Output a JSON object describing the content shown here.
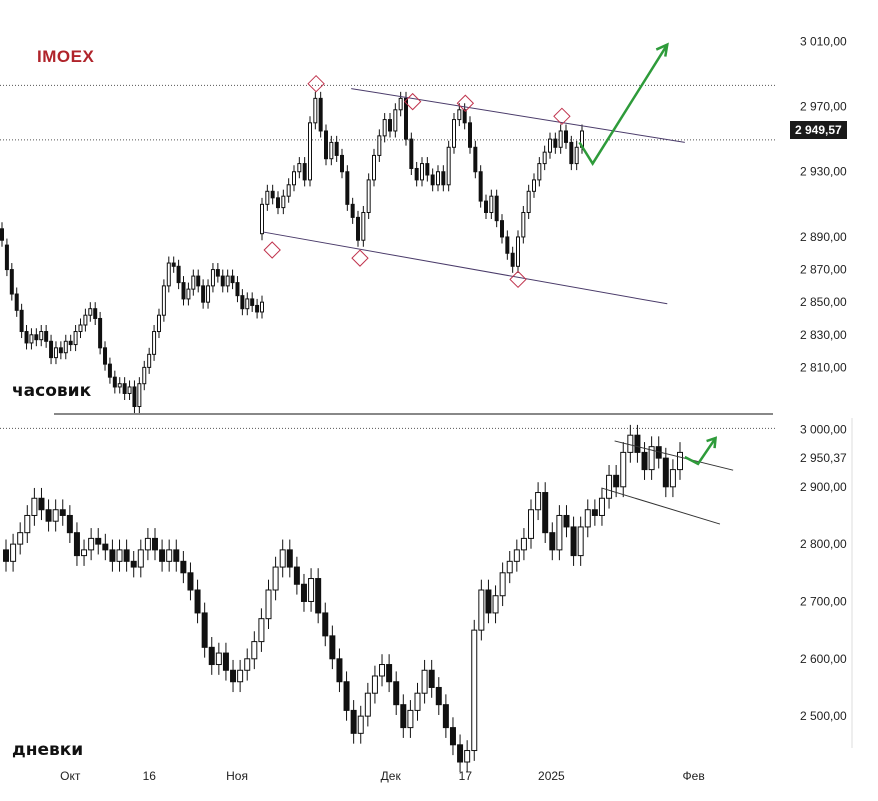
{
  "ticker": "IMOEX",
  "chart_data": [
    {
      "type": "candlestick",
      "panel": "hourly",
      "title": "часовик",
      "ylim": [
        2790,
        3020
      ],
      "y_ticks": [
        2810,
        2830,
        2850,
        2870,
        2890,
        2930,
        2970,
        3010
      ],
      "y_tick_labels": [
        "2 810,00",
        "2 830,00",
        "2 850,00",
        "2 870,00",
        "2 890,00",
        "2 930,00",
        "2 970,00",
        "3 010,00"
      ],
      "last_price": 2949.57,
      "last_price_label": "2 949,57",
      "reference_lines": [
        2949.57,
        2983
      ],
      "channel": {
        "upper": [
          [
            0.4,
            2981
          ],
          [
            0.78,
            2948
          ]
        ],
        "lower": [
          [
            0.3,
            2893
          ],
          [
            0.76,
            2849
          ]
        ]
      },
      "markers": [
        {
          "x": 0.36,
          "y": 2984
        },
        {
          "x": 0.47,
          "y": 2973
        },
        {
          "x": 0.53,
          "y": 2972
        },
        {
          "x": 0.64,
          "y": 2964
        },
        {
          "x": 0.31,
          "y": 2882
        },
        {
          "x": 0.41,
          "y": 2877
        },
        {
          "x": 0.59,
          "y": 2864
        }
      ],
      "forecast": [
        [
          0.66,
          2948
        ],
        [
          0.675,
          2935
        ],
        [
          0.76,
          3008
        ]
      ],
      "candles": [
        [
          2895,
          2888
        ],
        [
          2885,
          2870
        ],
        [
          2870,
          2855
        ],
        [
          2855,
          2845
        ],
        [
          2845,
          2832
        ],
        [
          2832,
          2825
        ],
        [
          2825,
          2830
        ],
        [
          2830,
          2827
        ],
        [
          2827,
          2832
        ],
        [
          2832,
          2826
        ],
        [
          2826,
          2816
        ],
        [
          2816,
          2822
        ],
        [
          2822,
          2819
        ],
        [
          2819,
          2826
        ],
        [
          2826,
          2824
        ],
        [
          2824,
          2832
        ],
        [
          2832,
          2836
        ],
        [
          2836,
          2842
        ],
        [
          2842,
          2846
        ],
        [
          2846,
          2840
        ],
        [
          2840,
          2822
        ],
        [
          2822,
          2812
        ],
        [
          2812,
          2804
        ],
        [
          2804,
          2798
        ],
        [
          2798,
          2800
        ],
        [
          2800,
          2794
        ],
        [
          2794,
          2798
        ],
        [
          2798,
          2786
        ],
        [
          2786,
          2800
        ],
        [
          2800,
          2810
        ],
        [
          2810,
          2818
        ],
        [
          2818,
          2832
        ],
        [
          2832,
          2842
        ],
        [
          2842,
          2860
        ],
        [
          2860,
          2874
        ],
        [
          2874,
          2872
        ],
        [
          2872,
          2862
        ],
        [
          2862,
          2852
        ],
        [
          2852,
          2858
        ],
        [
          2858,
          2866
        ],
        [
          2866,
          2860
        ],
        [
          2860,
          2850
        ],
        [
          2850,
          2860
        ],
        [
          2860,
          2870
        ],
        [
          2870,
          2866
        ],
        [
          2866,
          2860
        ],
        [
          2860,
          2866
        ],
        [
          2866,
          2862
        ],
        [
          2862,
          2854
        ],
        [
          2854,
          2846
        ],
        [
          2846,
          2852
        ],
        [
          2852,
          2848
        ],
        [
          2848,
          2844
        ],
        [
          2844,
          2850
        ],
        [
          2892,
          2910
        ],
        [
          2910,
          2918
        ],
        [
          2918,
          2914
        ],
        [
          2914,
          2908
        ],
        [
          2908,
          2915
        ],
        [
          2915,
          2922
        ],
        [
          2922,
          2930
        ],
        [
          2930,
          2935
        ],
        [
          2935,
          2925
        ],
        [
          2925,
          2960
        ],
        [
          2960,
          2975
        ],
        [
          2975,
          2955
        ],
        [
          2955,
          2938
        ],
        [
          2938,
          2948
        ],
        [
          2948,
          2940
        ],
        [
          2940,
          2930
        ],
        [
          2930,
          2910
        ],
        [
          2910,
          2902
        ],
        [
          2902,
          2888
        ],
        [
          2888,
          2905
        ],
        [
          2905,
          2925
        ],
        [
          2925,
          2940
        ],
        [
          2940,
          2952
        ],
        [
          2952,
          2962
        ],
        [
          2962,
          2955
        ],
        [
          2955,
          2968
        ],
        [
          2968,
          2975
        ],
        [
          2975,
          2950
        ],
        [
          2950,
          2932
        ],
        [
          2932,
          2925
        ],
        [
          2925,
          2935
        ],
        [
          2935,
          2928
        ],
        [
          2928,
          2922
        ],
        [
          2922,
          2930
        ],
        [
          2930,
          2922
        ],
        [
          2922,
          2945
        ],
        [
          2945,
          2962
        ],
        [
          2962,
          2968
        ],
        [
          2968,
          2960
        ],
        [
          2960,
          2945
        ],
        [
          2945,
          2930
        ],
        [
          2930,
          2912
        ],
        [
          2912,
          2905
        ],
        [
          2905,
          2915
        ],
        [
          2915,
          2900
        ],
        [
          2900,
          2890
        ],
        [
          2890,
          2880
        ],
        [
          2880,
          2872
        ],
        [
          2872,
          2890
        ],
        [
          2890,
          2905
        ],
        [
          2905,
          2918
        ],
        [
          2918,
          2925
        ],
        [
          2925,
          2935
        ],
        [
          2935,
          2942
        ],
        [
          2942,
          2950
        ],
        [
          2950,
          2945
        ],
        [
          2945,
          2955
        ],
        [
          2955,
          2948
        ],
        [
          2948,
          2935
        ],
        [
          2935,
          2945
        ],
        [
          2945,
          2955
        ]
      ]
    },
    {
      "type": "candlestick",
      "panel": "daily",
      "title": "дневки",
      "ylim": [
        2420,
        3020
      ],
      "y_ticks": [
        2500,
        2600,
        2700,
        2800,
        2900,
        2950.37,
        3000
      ],
      "y_tick_labels": [
        "2 500,00",
        "2 600,00",
        "2 700,00",
        "2 800,00",
        "2 900,00",
        "2 950,37",
        "3 000,00"
      ],
      "reference_lines": [
        3002
      ],
      "channel": {
        "upper": [
          [
            0.7,
            2980
          ],
          [
            0.835,
            2929
          ]
        ],
        "lower": [
          [
            0.685,
            2898
          ],
          [
            0.82,
            2835
          ]
        ]
      },
      "forecast": [
        [
          0.78,
          2952
        ],
        [
          0.795,
          2940
        ],
        [
          0.815,
          2985
        ]
      ],
      "x_ticks": [
        {
          "pos": 0.08,
          "label": "Окт"
        },
        {
          "pos": 0.17,
          "label": "16"
        },
        {
          "pos": 0.27,
          "label": "Ноя"
        },
        {
          "pos": 0.445,
          "label": "Дек"
        },
        {
          "pos": 0.53,
          "label": "17"
        },
        {
          "pos": 0.628,
          "label": "2025"
        },
        {
          "pos": 0.79,
          "label": "Фев"
        }
      ],
      "candles": [
        [
          2790,
          2770
        ],
        [
          2770,
          2800
        ],
        [
          2800,
          2820
        ],
        [
          2820,
          2850
        ],
        [
          2850,
          2880
        ],
        [
          2880,
          2860
        ],
        [
          2860,
          2840
        ],
        [
          2840,
          2860
        ],
        [
          2860,
          2850
        ],
        [
          2850,
          2820
        ],
        [
          2820,
          2780
        ],
        [
          2780,
          2790
        ],
        [
          2790,
          2810
        ],
        [
          2810,
          2800
        ],
        [
          2800,
          2790
        ],
        [
          2790,
          2770
        ],
        [
          2770,
          2790
        ],
        [
          2790,
          2770
        ],
        [
          2770,
          2760
        ],
        [
          2760,
          2790
        ],
        [
          2790,
          2810
        ],
        [
          2810,
          2790
        ],
        [
          2790,
          2770
        ],
        [
          2770,
          2790
        ],
        [
          2790,
          2770
        ],
        [
          2770,
          2750
        ],
        [
          2750,
          2720
        ],
        [
          2720,
          2680
        ],
        [
          2680,
          2620
        ],
        [
          2620,
          2590
        ],
        [
          2590,
          2610
        ],
        [
          2610,
          2580
        ],
        [
          2580,
          2560
        ],
        [
          2560,
          2580
        ],
        [
          2580,
          2600
        ],
        [
          2600,
          2630
        ],
        [
          2630,
          2670
        ],
        [
          2670,
          2720
        ],
        [
          2720,
          2760
        ],
        [
          2760,
          2790
        ],
        [
          2790,
          2760
        ],
        [
          2760,
          2730
        ],
        [
          2730,
          2700
        ],
        [
          2700,
          2740
        ],
        [
          2740,
          2680
        ],
        [
          2680,
          2640
        ],
        [
          2640,
          2600
        ],
        [
          2600,
          2560
        ],
        [
          2560,
          2510
        ],
        [
          2510,
          2470
        ],
        [
          2470,
          2500
        ],
        [
          2500,
          2540
        ],
        [
          2540,
          2570
        ],
        [
          2570,
          2590
        ],
        [
          2590,
          2560
        ],
        [
          2560,
          2520
        ],
        [
          2520,
          2480
        ],
        [
          2480,
          2510
        ],
        [
          2510,
          2540
        ],
        [
          2540,
          2580
        ],
        [
          2580,
          2550
        ],
        [
          2550,
          2520
        ],
        [
          2520,
          2480
        ],
        [
          2480,
          2450
        ],
        [
          2450,
          2420
        ],
        [
          2420,
          2440
        ],
        [
          2440,
          2650
        ],
        [
          2650,
          2720
        ],
        [
          2720,
          2680
        ],
        [
          2680,
          2710
        ],
        [
          2710,
          2750
        ],
        [
          2750,
          2770
        ],
        [
          2770,
          2790
        ],
        [
          2790,
          2810
        ],
        [
          2810,
          2860
        ],
        [
          2860,
          2890
        ],
        [
          2890,
          2820
        ],
        [
          2820,
          2790
        ],
        [
          2790,
          2850
        ],
        [
          2850,
          2830
        ],
        [
          2830,
          2780
        ],
        [
          2780,
          2830
        ],
        [
          2830,
          2860
        ],
        [
          2860,
          2850
        ],
        [
          2850,
          2880
        ],
        [
          2880,
          2920
        ],
        [
          2920,
          2900
        ],
        [
          2900,
          2960
        ],
        [
          2960,
          2990
        ],
        [
          2990,
          2960
        ],
        [
          2960,
          2930
        ],
        [
          2930,
          2970
        ],
        [
          2970,
          2950
        ],
        [
          2950,
          2900
        ],
        [
          2900,
          2930
        ],
        [
          2930,
          2960
        ]
      ]
    }
  ]
}
